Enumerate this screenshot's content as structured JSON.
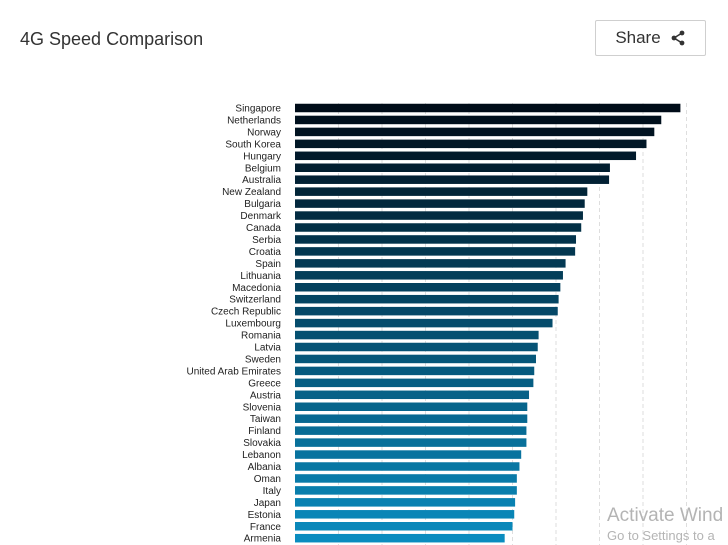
{
  "header": {
    "title": "4G Speed Comparison",
    "share_label": "Share"
  },
  "icons": {
    "share": "share-icon"
  },
  "watermark": {
    "title": "Activate Wind",
    "subtitle": "Go to Settings to a"
  },
  "colors": {
    "bar_dark": "#000c18",
    "bar_light": "#0a8cbf",
    "grid": "#dedede"
  },
  "chart_data": {
    "type": "bar",
    "orientation": "horizontal",
    "title": "4G Speed Comparison",
    "xlabel": "",
    "ylabel": "",
    "grid": true,
    "xlim": [
      0,
      45
    ],
    "categories": [
      "Singapore",
      "Netherlands",
      "Norway",
      "South Korea",
      "Hungary",
      "Belgium",
      "Australia",
      "New Zealand",
      "Bulgaria",
      "Denmark",
      "Canada",
      "Serbia",
      "Croatia",
      "Spain",
      "Lithuania",
      "Macedonia",
      "Switzerland",
      "Czech Republic",
      "Luxembourg",
      "Romania",
      "Latvia",
      "Sweden",
      "United Arab Emirates",
      "Greece",
      "Austria",
      "Slovenia",
      "Taiwan",
      "Finland",
      "Slovakia",
      "Lebanon",
      "Albania",
      "Oman",
      "Italy",
      "Japan",
      "Estonia",
      "France",
      "Armenia"
    ],
    "values": [
      44.3,
      42.1,
      41.3,
      40.4,
      39.2,
      36.2,
      36.1,
      33.6,
      33.3,
      33.1,
      32.9,
      32.3,
      32.2,
      31.1,
      30.8,
      30.5,
      30.3,
      30.2,
      29.6,
      28.0,
      27.9,
      27.7,
      27.5,
      27.4,
      26.9,
      26.7,
      26.7,
      26.6,
      26.6,
      26.0,
      25.8,
      25.5,
      25.5,
      25.3,
      25.2,
      25.0,
      24.1
    ]
  }
}
